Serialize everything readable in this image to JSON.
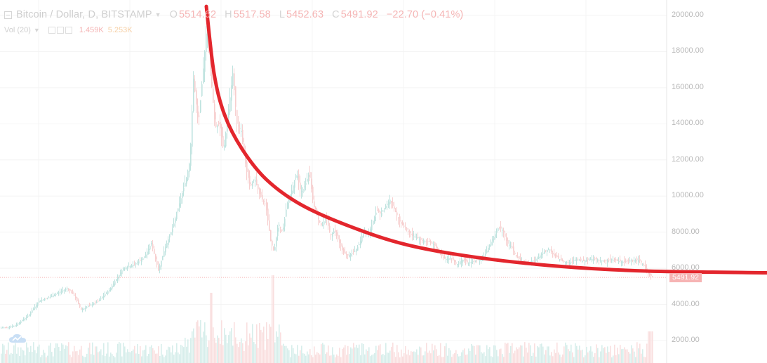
{
  "colors": {
    "up": "#bfe3df",
    "down": "#f7cfcf",
    "vol_up": "#d7eeeb",
    "vol_down": "#f9dfdf",
    "curve": "#e3262d",
    "grid": "#f4f4f4",
    "price_tag": "#f6b4b4"
  },
  "legend": {
    "symbol": "Bitcoin / Dollar, D, BITSTAMP",
    "open_label": "O",
    "open": "5514.62",
    "high_label": "H",
    "high": "5517.58",
    "low_label": "L",
    "low": "5452.63",
    "close_label": "C",
    "close": "5491.92",
    "change": "−22.70 (−0.41%)"
  },
  "volume_legend": {
    "label": "Vol (20)",
    "v1": "1.459K",
    "v2": "5.253K"
  },
  "icons": {
    "collapse": "collapse-square-icon",
    "menu": "caret-down-icon",
    "logo": "tradingview-cloud-icon"
  },
  "chart_data": {
    "type": "candlestick",
    "title": "Bitcoin / Dollar, D, BITSTAMP",
    "y_axis_ticks": [
      "20000.00",
      "18000.00",
      "16000.00",
      "14000.00",
      "12000.00",
      "10000.00",
      "8000.00",
      "6000.00",
      "4000.00",
      "2000.00"
    ],
    "y_axis_values": [
      20000,
      18000,
      16000,
      14000,
      12000,
      10000,
      8000,
      6000,
      4000,
      2000
    ],
    "ylim": [
      1000,
      20800
    ],
    "current_price_label": "5491.92",
    "current_price": 5491.92,
    "close_anchors": [
      [
        0,
        2700
      ],
      [
        20,
        2800
      ],
      [
        40,
        3400
      ],
      [
        55,
        4200
      ],
      [
        70,
        4400
      ],
      [
        85,
        4700
      ],
      [
        95,
        4900
      ],
      [
        105,
        4500
      ],
      [
        115,
        3700
      ],
      [
        125,
        3900
      ],
      [
        140,
        4200
      ],
      [
        155,
        4800
      ],
      [
        165,
        5400
      ],
      [
        175,
        6000
      ],
      [
        190,
        6200
      ],
      [
        205,
        6600
      ],
      [
        215,
        7400
      ],
      [
        225,
        5900
      ],
      [
        235,
        7200
      ],
      [
        245,
        8200
      ],
      [
        255,
        9600
      ],
      [
        265,
        11000
      ],
      [
        270,
        12000
      ],
      [
        275,
        16500
      ],
      [
        282,
        14000
      ],
      [
        290,
        17500
      ],
      [
        294,
        19500
      ],
      [
        300,
        16500
      ],
      [
        306,
        13800
      ],
      [
        312,
        14000
      ],
      [
        318,
        12500
      ],
      [
        325,
        14800
      ],
      [
        331,
        16800
      ],
      [
        337,
        14000
      ],
      [
        343,
        13600
      ],
      [
        350,
        11500
      ],
      [
        356,
        10500
      ],
      [
        362,
        11000
      ],
      [
        370,
        10000
      ],
      [
        378,
        9500
      ],
      [
        385,
        7500
      ],
      [
        390,
        6900
      ],
      [
        396,
        8500
      ],
      [
        402,
        8000
      ],
      [
        408,
        9500
      ],
      [
        415,
        10300
      ],
      [
        422,
        11300
      ],
      [
        428,
        10200
      ],
      [
        434,
        10600
      ],
      [
        440,
        11300
      ],
      [
        446,
        9500
      ],
      [
        452,
        8800
      ],
      [
        458,
        8300
      ],
      [
        464,
        8900
      ],
      [
        470,
        7800
      ],
      [
        476,
        8100
      ],
      [
        482,
        7500
      ],
      [
        488,
        6900
      ],
      [
        494,
        6700
      ],
      [
        500,
        6800
      ],
      [
        506,
        7000
      ],
      [
        512,
        7400
      ],
      [
        518,
        8200
      ],
      [
        524,
        7900
      ],
      [
        530,
        8500
      ],
      [
        536,
        9200
      ],
      [
        542,
        9000
      ],
      [
        548,
        9400
      ],
      [
        555,
        9800
      ],
      [
        562,
        9200
      ],
      [
        570,
        8500
      ],
      [
        578,
        8200
      ],
      [
        586,
        7800
      ],
      [
        594,
        7700
      ],
      [
        602,
        7500
      ],
      [
        610,
        7500
      ],
      [
        618,
        7300
      ],
      [
        626,
        6800
      ],
      [
        634,
        6500
      ],
      [
        642,
        6600
      ],
      [
        650,
        6200
      ],
      [
        658,
        6500
      ],
      [
        666,
        6300
      ],
      [
        674,
        6400
      ],
      [
        682,
        6500
      ],
      [
        690,
        6700
      ],
      [
        698,
        7400
      ],
      [
        704,
        7800
      ],
      [
        710,
        8300
      ],
      [
        716,
        8100
      ],
      [
        722,
        7400
      ],
      [
        728,
        7200
      ],
      [
        734,
        6700
      ],
      [
        742,
        6400
      ],
      [
        750,
        6300
      ],
      [
        758,
        6400
      ],
      [
        766,
        6600
      ],
      [
        774,
        6900
      ],
      [
        782,
        7100
      ],
      [
        788,
        6700
      ],
      [
        794,
        6600
      ],
      [
        800,
        6400
      ],
      [
        810,
        6300
      ],
      [
        820,
        6500
      ],
      [
        830,
        6400
      ],
      [
        840,
        6500
      ],
      [
        850,
        6500
      ],
      [
        860,
        6400
      ],
      [
        870,
        6500
      ],
      [
        880,
        6400
      ],
      [
        890,
        6350
      ],
      [
        900,
        6450
      ],
      [
        910,
        6450
      ],
      [
        916,
        6200
      ],
      [
        922,
        5700
      ],
      [
        926,
        5600
      ],
      [
        930,
        5500
      ]
    ],
    "trend_curve": {
      "style": "hand-drawn decay curve",
      "points": [
        [
          294,
          20500
        ],
        [
          305,
          16800
        ],
        [
          320,
          14500
        ],
        [
          345,
          12600
        ],
        [
          380,
          10900
        ],
        [
          430,
          9500
        ],
        [
          500,
          8300
        ],
        [
          580,
          7300
        ],
        [
          680,
          6600
        ],
        [
          800,
          6100
        ],
        [
          920,
          5850
        ],
        [
          1093,
          5750
        ]
      ]
    }
  }
}
